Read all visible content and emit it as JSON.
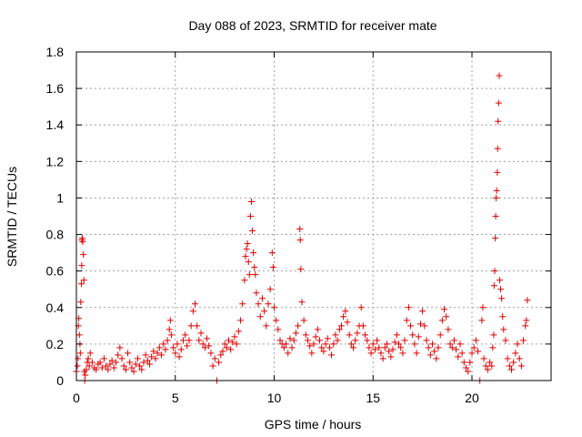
{
  "chart_data": {
    "type": "scatter",
    "title": "Day 088 of 2023, SRMTID for receiver mate",
    "xlabel": "GPS time / hours",
    "ylabel": "SRMTID / TECUs",
    "xlim": [
      0,
      24
    ],
    "ylim": [
      0,
      1.8
    ],
    "xticks": [
      0,
      5,
      10,
      15,
      20
    ],
    "yticks": [
      0,
      0.2,
      0.4,
      0.6,
      0.8,
      1,
      1.2,
      1.4,
      1.6,
      1.8
    ],
    "xtick_labels": [
      "0",
      "5",
      "10",
      "15",
      "20"
    ],
    "ytick_labels": [
      "0",
      "0.2",
      "0.4",
      "0.6",
      "0.8",
      "1",
      "1.2",
      "1.4",
      "1.6",
      "1.8"
    ],
    "grid": true,
    "marker": "+",
    "color": "#e00000",
    "points": [
      [
        0.0,
        0.05
      ],
      [
        0.05,
        0.08
      ],
      [
        0.08,
        0.12
      ],
      [
        0.1,
        0.3
      ],
      [
        0.12,
        0.34
      ],
      [
        0.15,
        0.25
      ],
      [
        0.18,
        0.2
      ],
      [
        0.2,
        0.15
      ],
      [
        0.22,
        0.43
      ],
      [
        0.25,
        0.53
      ],
      [
        0.27,
        0.63
      ],
      [
        0.28,
        0.77
      ],
      [
        0.3,
        0.78
      ],
      [
        0.32,
        0.76
      ],
      [
        0.35,
        0.69
      ],
      [
        0.38,
        0.55
      ],
      [
        0.4,
        0.05
      ],
      [
        0.42,
        0.0
      ],
      [
        0.45,
        0.03
      ],
      [
        0.5,
        0.06
      ],
      [
        0.55,
        0.1
      ],
      [
        0.6,
        0.12
      ],
      [
        0.65,
        0.08
      ],
      [
        0.7,
        0.15
      ],
      [
        0.8,
        0.1
      ],
      [
        0.9,
        0.07
      ],
      [
        1.0,
        0.06
      ],
      [
        1.1,
        0.09
      ],
      [
        1.2,
        0.1
      ],
      [
        1.3,
        0.07
      ],
      [
        1.4,
        0.12
      ],
      [
        1.5,
        0.08
      ],
      [
        1.6,
        0.06
      ],
      [
        1.7,
        0.09
      ],
      [
        1.8,
        0.11
      ],
      [
        1.9,
        0.07
      ],
      [
        2.0,
        0.1
      ],
      [
        2.1,
        0.14
      ],
      [
        2.2,
        0.18
      ],
      [
        2.3,
        0.12
      ],
      [
        2.4,
        0.08
      ],
      [
        2.5,
        0.06
      ],
      [
        2.6,
        0.15
      ],
      [
        2.7,
        0.1
      ],
      [
        2.8,
        0.07
      ],
      [
        2.9,
        0.05
      ],
      [
        3.0,
        0.09
      ],
      [
        3.1,
        0.12
      ],
      [
        3.2,
        0.08
      ],
      [
        3.3,
        0.06
      ],
      [
        3.4,
        0.1
      ],
      [
        3.5,
        0.14
      ],
      [
        3.6,
        0.11
      ],
      [
        3.7,
        0.09
      ],
      [
        3.8,
        0.13
      ],
      [
        3.9,
        0.16
      ],
      [
        4.0,
        0.12
      ],
      [
        4.1,
        0.15
      ],
      [
        4.2,
        0.18
      ],
      [
        4.3,
        0.14
      ],
      [
        4.4,
        0.2
      ],
      [
        4.5,
        0.17
      ],
      [
        4.6,
        0.22
      ],
      [
        4.7,
        0.28
      ],
      [
        4.75,
        0.33
      ],
      [
        4.8,
        0.25
      ],
      [
        4.9,
        0.18
      ],
      [
        5.0,
        0.15
      ],
      [
        5.1,
        0.2
      ],
      [
        5.2,
        0.13
      ],
      [
        5.3,
        0.17
      ],
      [
        5.4,
        0.22
      ],
      [
        5.5,
        0.25
      ],
      [
        5.6,
        0.19
      ],
      [
        5.7,
        0.22
      ],
      [
        5.8,
        0.3
      ],
      [
        5.9,
        0.38
      ],
      [
        6.0,
        0.42
      ],
      [
        6.1,
        0.3
      ],
      [
        6.2,
        0.22
      ],
      [
        6.3,
        0.26
      ],
      [
        6.4,
        0.2
      ],
      [
        6.5,
        0.18
      ],
      [
        6.6,
        0.23
      ],
      [
        6.7,
        0.19
      ],
      [
        6.8,
        0.15
      ],
      [
        6.9,
        0.08
      ],
      [
        7.0,
        0.12
      ],
      [
        7.1,
        0.0
      ],
      [
        7.2,
        0.1
      ],
      [
        7.3,
        0.14
      ],
      [
        7.4,
        0.16
      ],
      [
        7.5,
        0.2
      ],
      [
        7.6,
        0.18
      ],
      [
        7.7,
        0.22
      ],
      [
        7.8,
        0.17
      ],
      [
        7.9,
        0.21
      ],
      [
        8.0,
        0.24
      ],
      [
        8.1,
        0.2
      ],
      [
        8.2,
        0.27
      ],
      [
        8.3,
        0.33
      ],
      [
        8.4,
        0.42
      ],
      [
        8.5,
        0.55
      ],
      [
        8.55,
        0.68
      ],
      [
        8.6,
        0.72
      ],
      [
        8.65,
        0.75
      ],
      [
        8.7,
        0.65
      ],
      [
        8.75,
        0.58
      ],
      [
        8.8,
        0.9
      ],
      [
        8.85,
        0.98
      ],
      [
        8.9,
        0.82
      ],
      [
        8.95,
        0.7
      ],
      [
        9.0,
        0.62
      ],
      [
        9.05,
        0.58
      ],
      [
        9.1,
        0.48
      ],
      [
        9.2,
        0.42
      ],
      [
        9.3,
        0.35
      ],
      [
        9.4,
        0.45
      ],
      [
        9.5,
        0.38
      ],
      [
        9.6,
        0.3
      ],
      [
        9.7,
        0.42
      ],
      [
        9.8,
        0.5
      ],
      [
        9.9,
        0.7
      ],
      [
        9.95,
        0.62
      ],
      [
        10.0,
        0.4
      ],
      [
        10.1,
        0.33
      ],
      [
        10.2,
        0.28
      ],
      [
        10.3,
        0.22
      ],
      [
        10.4,
        0.2
      ],
      [
        10.5,
        0.18
      ],
      [
        10.6,
        0.2
      ],
      [
        10.7,
        0.15
      ],
      [
        10.8,
        0.23
      ],
      [
        10.9,
        0.18
      ],
      [
        11.0,
        0.22
      ],
      [
        11.1,
        0.26
      ],
      [
        11.2,
        0.3
      ],
      [
        11.3,
        0.83
      ],
      [
        11.32,
        0.77
      ],
      [
        11.35,
        0.61
      ],
      [
        11.4,
        0.43
      ],
      [
        11.5,
        0.33
      ],
      [
        11.6,
        0.25
      ],
      [
        11.7,
        0.22
      ],
      [
        11.8,
        0.19
      ],
      [
        11.9,
        0.15
      ],
      [
        12.0,
        0.2
      ],
      [
        12.1,
        0.24
      ],
      [
        12.2,
        0.28
      ],
      [
        12.3,
        0.22
      ],
      [
        12.4,
        0.18
      ],
      [
        12.5,
        0.16
      ],
      [
        12.6,
        0.2
      ],
      [
        12.7,
        0.23
      ],
      [
        12.8,
        0.18
      ],
      [
        12.9,
        0.14
      ],
      [
        13.0,
        0.2
      ],
      [
        13.1,
        0.25
      ],
      [
        13.2,
        0.22
      ],
      [
        13.3,
        0.28
      ],
      [
        13.4,
        0.3
      ],
      [
        13.5,
        0.35
      ],
      [
        13.6,
        0.38
      ],
      [
        13.7,
        0.32
      ],
      [
        13.8,
        0.25
      ],
      [
        13.9,
        0.2
      ],
      [
        14.0,
        0.18
      ],
      [
        14.1,
        0.22
      ],
      [
        14.2,
        0.26
      ],
      [
        14.3,
        0.3
      ],
      [
        14.4,
        0.4
      ],
      [
        14.5,
        0.3
      ],
      [
        14.6,
        0.25
      ],
      [
        14.7,
        0.22
      ],
      [
        14.8,
        0.18
      ],
      [
        14.9,
        0.15
      ],
      [
        15.0,
        0.2
      ],
      [
        15.1,
        0.17
      ],
      [
        15.2,
        0.22
      ],
      [
        15.3,
        0.18
      ],
      [
        15.4,
        0.15
      ],
      [
        15.5,
        0.12
      ],
      [
        15.6,
        0.18
      ],
      [
        15.7,
        0.2
      ],
      [
        15.8,
        0.16
      ],
      [
        15.9,
        0.13
      ],
      [
        16.0,
        0.17
      ],
      [
        16.1,
        0.21
      ],
      [
        16.2,
        0.25
      ],
      [
        16.3,
        0.2
      ],
      [
        16.4,
        0.18
      ],
      [
        16.5,
        0.15
      ],
      [
        16.6,
        0.22
      ],
      [
        16.7,
        0.33
      ],
      [
        16.8,
        0.4
      ],
      [
        16.9,
        0.3
      ],
      [
        17.0,
        0.25
      ],
      [
        17.1,
        0.2
      ],
      [
        17.2,
        0.15
      ],
      [
        17.3,
        0.24
      ],
      [
        17.4,
        0.31
      ],
      [
        17.5,
        0.38
      ],
      [
        17.6,
        0.3
      ],
      [
        17.7,
        0.22
      ],
      [
        17.8,
        0.18
      ],
      [
        17.9,
        0.14
      ],
      [
        18.0,
        0.2
      ],
      [
        18.1,
        0.16
      ],
      [
        18.2,
        0.12
      ],
      [
        18.3,
        0.18
      ],
      [
        18.4,
        0.25
      ],
      [
        18.5,
        0.33
      ],
      [
        18.6,
        0.39
      ],
      [
        18.7,
        0.35
      ],
      [
        18.8,
        0.28
      ],
      [
        18.9,
        0.2
      ],
      [
        19.0,
        0.18
      ],
      [
        19.1,
        0.22
      ],
      [
        19.2,
        0.17
      ],
      [
        19.3,
        0.13
      ],
      [
        19.4,
        0.2
      ],
      [
        19.5,
        0.15
      ],
      [
        19.6,
        0.1
      ],
      [
        19.7,
        0.07
      ],
      [
        19.8,
        0.05
      ],
      [
        19.9,
        0.1
      ],
      [
        20.0,
        0.15
      ],
      [
        20.1,
        0.18
      ],
      [
        20.2,
        0.22
      ],
      [
        20.3,
        0.16
      ],
      [
        20.4,
        0.0
      ],
      [
        20.5,
        0.33
      ],
      [
        20.55,
        0.4
      ],
      [
        20.6,
        0.12
      ],
      [
        20.7,
        0.08
      ],
      [
        20.8,
        0.06
      ],
      [
        20.9,
        0.1
      ],
      [
        21.0,
        0.08
      ],
      [
        21.05,
        0.18
      ],
      [
        21.1,
        0.25
      ],
      [
        21.12,
        0.52
      ],
      [
        21.15,
        0.6
      ],
      [
        21.18,
        0.78
      ],
      [
        21.2,
        0.9
      ],
      [
        21.22,
        1.0
      ],
      [
        21.25,
        1.04
      ],
      [
        21.28,
        1.14
      ],
      [
        21.3,
        1.27
      ],
      [
        21.32,
        1.42
      ],
      [
        21.35,
        1.52
      ],
      [
        21.38,
        1.67
      ],
      [
        21.4,
        0.55
      ],
      [
        21.45,
        0.5
      ],
      [
        21.5,
        0.45
      ],
      [
        21.55,
        0.35
      ],
      [
        21.6,
        0.28
      ],
      [
        21.7,
        0.22
      ],
      [
        21.8,
        0.12
      ],
      [
        21.9,
        0.08
      ],
      [
        22.0,
        0.06
      ],
      [
        22.1,
        0.1
      ],
      [
        22.2,
        0.15
      ],
      [
        22.3,
        0.2
      ],
      [
        22.4,
        0.12
      ],
      [
        22.5,
        0.08
      ],
      [
        22.6,
        0.22
      ],
      [
        22.7,
        0.3
      ],
      [
        22.75,
        0.33
      ],
      [
        22.8,
        0.44
      ]
    ]
  }
}
